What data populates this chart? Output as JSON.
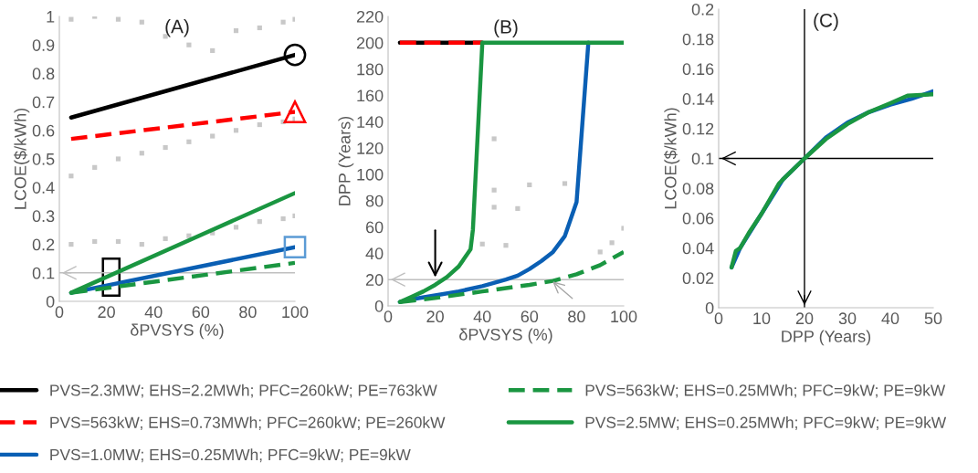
{
  "chart_data": [
    {
      "type": "line",
      "title": "(A)",
      "xlabel": "δPVSYS (%)",
      "ylabel": "LCOE($/kWh)",
      "xlim": [
        0,
        100
      ],
      "xticks": [
        0,
        20,
        40,
        60,
        80,
        100
      ],
      "ylim": [
        0,
        1
      ],
      "yticks": [
        0,
        {
          "value": 0.1,
          "label": "0.1"
        },
        {
          "value": 0.2,
          "label": "0.2"
        },
        {
          "value": 0.3,
          "label": "0.3"
        },
        {
          "value": 0.4,
          "label": "0.4"
        },
        {
          "value": 0.5,
          "label": "0.5"
        },
        {
          "value": 0.6,
          "label": "0.6"
        },
        {
          "value": 0.7,
          "label": "0.7"
        },
        {
          "value": 0.8,
          "label": "0.8"
        },
        {
          "value": 0.9,
          "label": "0.9"
        },
        1
      ],
      "grid": false,
      "legend": "bottom",
      "ref_lines": [
        {
          "axis": "y",
          "value": 0.1,
          "color": "#bfbfbf"
        }
      ],
      "series": [
        {
          "type": "scatter",
          "color": "#c8c8c8",
          "x": [
            5,
            15,
            25,
            35,
            45,
            55,
            65,
            75,
            85,
            95,
            100,
            5,
            15,
            25,
            35,
            45,
            55,
            65,
            75,
            85,
            95,
            100,
            5,
            15,
            25,
            35,
            45,
            55,
            65,
            75,
            85,
            95,
            100
          ],
          "values": [
            0.99,
            1.0,
            0.99,
            0.98,
            0.93,
            0.9,
            0.88,
            0.95,
            0.96,
            0.98,
            0.99,
            0.44,
            0.47,
            0.5,
            0.52,
            0.54,
            0.56,
            0.58,
            0.6,
            0.62,
            0.63,
            0.64,
            0.2,
            0.21,
            0.21,
            0.2,
            0.22,
            0.23,
            0.24,
            0.26,
            0.28,
            0.29,
            0.3
          ]
        },
        {
          "name": "PVS=2.3MW; EHS=2.2MWh; PFC=260kW; PE=763kW",
          "color": "#000000",
          "line_style": "solid",
          "x": [
            5,
            100
          ],
          "values": [
            0.645,
            0.865
          ]
        },
        {
          "name": "PVS=563kW; EHS=0.73MWh; PFC=260kW; PE=260kW",
          "color": "#ff0000",
          "line_style": "dashed",
          "x": [
            5,
            100
          ],
          "values": [
            0.57,
            0.665
          ]
        },
        {
          "name": "PVS=1.0MW; EHS=0.25MWh; PFC=9kW; PE=9kW",
          "color": "#0a5fb4",
          "line_style": "solid",
          "x": [
            5,
            100
          ],
          "values": [
            0.03,
            0.19
          ]
        },
        {
          "name": "PVS=563kW; EHS=0.25MWh; PFC=9kW; PE=9kW",
          "color": "#1a9641",
          "line_style": "dashed",
          "x": [
            5,
            100
          ],
          "values": [
            0.03,
            0.135
          ]
        },
        {
          "name": "PVS=2.5MW; EHS=0.25MWh; PFC=9kW; PE=9kW",
          "color": "#1a9641",
          "line_style": "solid",
          "x": [
            5,
            100
          ],
          "values": [
            0.03,
            0.38
          ]
        }
      ]
    },
    {
      "type": "line",
      "title": "(B)",
      "xlabel": "δPVSYS (%)",
      "ylabel": "DPP (Years)",
      "xlim": [
        0,
        100
      ],
      "xticks": [
        0,
        20,
        40,
        60,
        80,
        100
      ],
      "ylim": [
        0,
        220
      ],
      "yticks": [
        0,
        20,
        40,
        60,
        80,
        100,
        120,
        140,
        160,
        180,
        200,
        220
      ],
      "grid": false,
      "ref_lines": [
        {
          "axis": "y",
          "value": 20,
          "color": "#bfbfbf"
        }
      ],
      "series": [
        {
          "type": "scatter",
          "color": "#c8c8c8",
          "x": [
            45,
            45,
            45,
            60,
            75,
            55,
            50,
            40,
            100,
            95,
            90
          ],
          "values": [
            127,
            88,
            75,
            92,
            93,
            74,
            46,
            47,
            59,
            48,
            41
          ]
        },
        {
          "color": "#000000",
          "line_style": "solid",
          "x": [
            5,
            40
          ],
          "values": [
            200,
            200
          ]
        },
        {
          "color": "#ff0000",
          "line_style": "dashed",
          "x": [
            5,
            40
          ],
          "values": [
            200,
            200
          ]
        },
        {
          "color": "#0a5fb4",
          "line_style": "solid",
          "x": [
            5,
            10,
            20,
            30,
            40,
            50,
            55,
            60,
            65,
            70,
            75,
            80,
            85
          ],
          "values": [
            3,
            5,
            8,
            11,
            15,
            20,
            23,
            28,
            34,
            41,
            53,
            79,
            200
          ]
        },
        {
          "color": "#1a9641",
          "line_style": "dashed",
          "x": [
            5,
            20,
            40,
            60,
            70,
            80,
            90,
            100
          ],
          "values": [
            3,
            6,
            11,
            16,
            19,
            24,
            31,
            41
          ]
        },
        {
          "color": "#1a9641",
          "line_style": "solid",
          "x": [
            5,
            10,
            15,
            20,
            25,
            30,
            35,
            36,
            40,
            100
          ],
          "values": [
            3,
            7,
            11,
            16,
            22,
            30,
            43,
            58,
            200,
            200
          ]
        }
      ]
    },
    {
      "type": "line",
      "title": "(C)",
      "xlabel": "DPP (Years)",
      "ylabel": "LCOE($/kWh)",
      "xlim": [
        0,
        50
      ],
      "xticks": [
        0,
        10,
        20,
        30,
        40,
        50
      ],
      "ylim": [
        0,
        0.2
      ],
      "yticks": [
        0,
        {
          "value": 0.02,
          "label": "0.02"
        },
        {
          "value": 0.04,
          "label": "0.04"
        },
        {
          "value": 0.06,
          "label": "0.06"
        },
        {
          "value": 0.08,
          "label": "0.08"
        },
        {
          "value": 0.1,
          "label": "0.1"
        },
        {
          "value": 0.12,
          "label": "0.12"
        },
        {
          "value": 0.14,
          "label": "0.14"
        },
        {
          "value": 0.16,
          "label": "0.16"
        },
        {
          "value": 0.18,
          "label": "0.18"
        },
        {
          "value": 0.2,
          "label": "0.2"
        }
      ],
      "grid": false,
      "ref_lines": [
        {
          "axis": "y",
          "value": 0.1,
          "color": "#000000"
        },
        {
          "axis": "x",
          "value": 20,
          "color": "#000000"
        }
      ],
      "series": [
        {
          "color": "#0a5fb4",
          "line_style": "solid",
          "x": [
            3,
            5,
            10,
            15,
            20,
            25,
            30,
            35,
            40,
            45,
            50
          ],
          "values": [
            0.027,
            0.04,
            0.063,
            0.086,
            0.1,
            0.114,
            0.124,
            0.131,
            0.136,
            0.14,
            0.145
          ]
        },
        {
          "color": "#1a9641",
          "line_style": "solid",
          "x": [
            3,
            4,
            5,
            7,
            10,
            14,
            15,
            20,
            25,
            30,
            35,
            40,
            44,
            50
          ],
          "values": [
            0.027,
            0.038,
            0.04,
            0.05,
            0.063,
            0.083,
            0.086,
            0.1,
            0.113,
            0.123,
            0.131,
            0.137,
            0.142,
            0.143
          ]
        }
      ]
    }
  ]
}
